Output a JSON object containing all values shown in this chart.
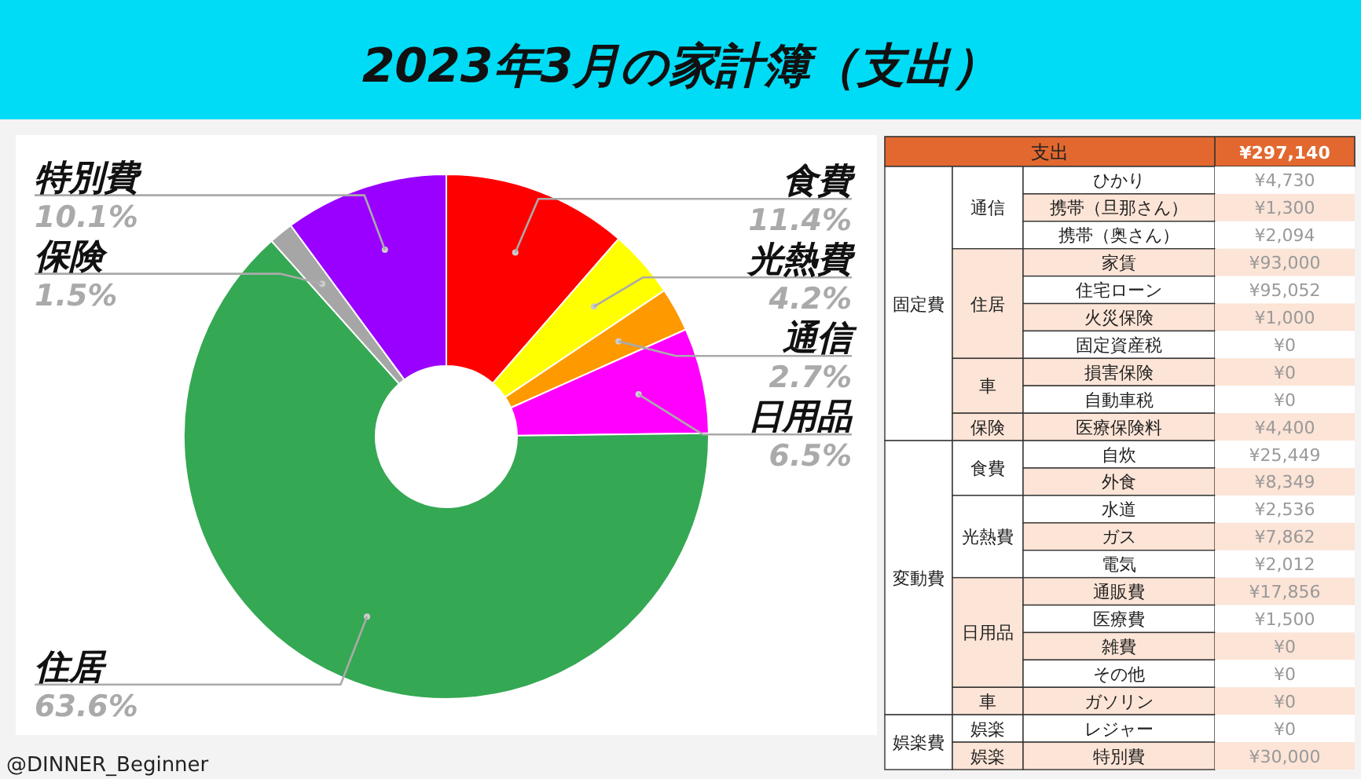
{
  "chart_data": [
    {
      "type": "donut",
      "title": "2023年3月の家計簿（支出）",
      "categories": [
        "食費",
        "光熱費",
        "通信",
        "日用品",
        "住居",
        "保険",
        "特別費"
      ],
      "values": [
        11.4,
        4.2,
        2.7,
        6.5,
        63.6,
        1.5,
        10.1
      ],
      "value_labels": [
        "11.4%",
        "4.2%",
        "2.7%",
        "6.5%",
        "63.6%",
        "1.5%",
        "10.1%"
      ],
      "colors": [
        "#ff0000",
        "#ffff00",
        "#ff9900",
        "#ff00ff",
        "#34a853",
        "#a6a6a6",
        "#9900ff"
      ],
      "annotations": [
        "@DINNER_Beginner"
      ]
    },
    {
      "type": "other",
      "title": "支出",
      "totals": [
        "¥297,140"
      ],
      "categories": [
        "ひかり",
        "携帯（旦那さん）",
        "携帯（奥さん）",
        "家賃",
        "住宅ローン",
        "火災保険",
        "固定資産税",
        "損害保険",
        "自動車税",
        "医療保険料",
        "自炊",
        "外食",
        "水道",
        "ガス",
        "電気",
        "通販費",
        "医療費",
        "雑費",
        "その他",
        "ガソリン",
        "レジャー",
        "特別費"
      ],
      "values": [
        4730,
        1300,
        2094,
        93000,
        95052,
        1000,
        0,
        0,
        0,
        4400,
        25449,
        8349,
        2536,
        7862,
        2012,
        17856,
        1500,
        0,
        0,
        0,
        0,
        30000
      ],
      "value_labels": [
        "¥4,730",
        "¥1,300",
        "¥2,094",
        "¥93,000",
        "¥95,052",
        "¥1,000",
        "¥0",
        "¥0",
        "¥0",
        "¥4,400",
        "¥25,449",
        "¥8,349",
        "¥2,536",
        "¥7,862",
        "¥2,012",
        "¥17,856",
        "¥1,500",
        "¥0",
        "¥0",
        "¥0",
        "¥0",
        "¥30,000"
      ],
      "annotations": [
        "固定費",
        "変動費",
        "娯楽費",
        "通信",
        "住居",
        "車",
        "保険",
        "食費",
        "光熱費",
        "日用品",
        "車",
        "娯楽",
        "娯楽"
      ]
    }
  ]
}
